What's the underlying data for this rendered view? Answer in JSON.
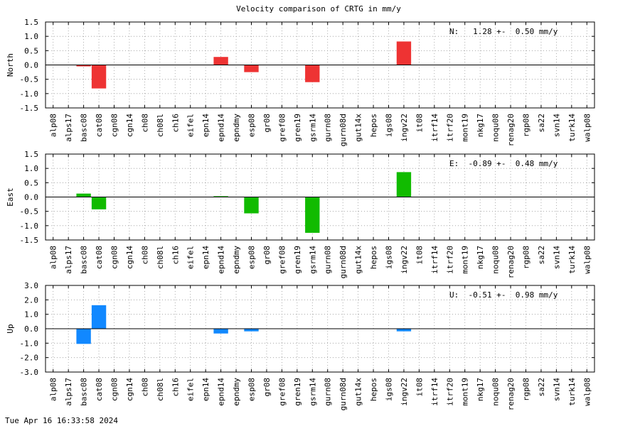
{
  "title": "Velocity comparison of CRTG in mm/y",
  "footer": "Tue Apr 16 16:33:58 2024",
  "chart_data": [
    {
      "type": "bar",
      "ylabel": "North",
      "ylim": [
        -1.5,
        1.5
      ],
      "yticks": [
        -1.5,
        -1.0,
        -0.5,
        0.0,
        0.5,
        1.0,
        1.5
      ],
      "color": "#ee3333",
      "annotation": "N:   1.28 +-  0.50 mm/y",
      "grid": true,
      "categories": [
        "alp08",
        "alps17",
        "basc08",
        "cat08",
        "cgn08",
        "cgn14",
        "ch08",
        "ch08l",
        "ch16",
        "eifel",
        "epn14",
        "epnd14",
        "epndmy",
        "esp08",
        "gr08",
        "gref08",
        "gren19",
        "gsrm14",
        "gurn08",
        "gurn08d",
        "gut14x",
        "hepos",
        "igs08",
        "ingv22",
        "it08",
        "itrf14",
        "itrf20",
        "mont19",
        "nkg17",
        "noqu08",
        "renag20",
        "rgp08",
        "sa22",
        "svn14",
        "turk14",
        "walp08"
      ],
      "values": [
        0,
        0,
        -0.05,
        -0.82,
        0,
        0,
        0,
        0,
        0,
        0,
        0,
        0.28,
        0,
        -0.25,
        0,
        0,
        0,
        -0.6,
        0,
        0,
        0,
        0,
        0,
        0.82,
        0,
        0,
        0,
        0,
        0,
        0,
        0,
        0,
        0,
        0,
        0,
        0
      ]
    },
    {
      "type": "bar",
      "ylabel": "East",
      "ylim": [
        -1.5,
        1.5
      ],
      "yticks": [
        -1.5,
        -1.0,
        -0.5,
        0.0,
        0.5,
        1.0,
        1.5
      ],
      "color": "#11bb00",
      "annotation": "E:  -0.89 +-  0.48 mm/y",
      "grid": true,
      "categories": [
        "alp08",
        "alps17",
        "basc08",
        "cat08",
        "cgn08",
        "cgn14",
        "ch08",
        "ch08l",
        "ch16",
        "eifel",
        "epn14",
        "epnd14",
        "epndmy",
        "esp08",
        "gr08",
        "gref08",
        "gren19",
        "gsrm14",
        "gurn08",
        "gurn08d",
        "gut14x",
        "hepos",
        "igs08",
        "ingv22",
        "it08",
        "itrf14",
        "itrf20",
        "mont19",
        "nkg17",
        "noqu08",
        "renag20",
        "rgp08",
        "sa22",
        "svn14",
        "turk14",
        "walp08"
      ],
      "values": [
        0,
        0,
        0.12,
        -0.43,
        0,
        0,
        0,
        0,
        0,
        0,
        0,
        0.03,
        0,
        -0.57,
        0,
        0,
        0,
        -1.25,
        0,
        0,
        0,
        0,
        0,
        0.87,
        0,
        0,
        0,
        0,
        0,
        0,
        0,
        0,
        0,
        0,
        0,
        0
      ]
    },
    {
      "type": "bar",
      "ylabel": "Up",
      "ylim": [
        -3.0,
        3.0
      ],
      "yticks": [
        -3.0,
        -2.0,
        -1.0,
        0.0,
        1.0,
        2.0,
        3.0
      ],
      "color": "#1188ff",
      "annotation": "U:  -0.51 +-  0.98 mm/y",
      "grid": true,
      "categories": [
        "alp08",
        "alps17",
        "basc08",
        "cat08",
        "cgn08",
        "cgn14",
        "ch08",
        "ch08l",
        "ch16",
        "eifel",
        "epn14",
        "epnd14",
        "epndmy",
        "esp08",
        "gr08",
        "gref08",
        "gren19",
        "gsrm14",
        "gurn08",
        "gurn08d",
        "gut14x",
        "hepos",
        "igs08",
        "ingv22",
        "it08",
        "itrf14",
        "itrf20",
        "mont19",
        "nkg17",
        "noqu08",
        "renag20",
        "rgp08",
        "sa22",
        "svn14",
        "turk14",
        "walp08"
      ],
      "values": [
        0,
        0,
        -1.05,
        1.63,
        0,
        0,
        0,
        0,
        0,
        0,
        0,
        -0.33,
        0,
        -0.18,
        0,
        0,
        0,
        0,
        0,
        0,
        0,
        0,
        0,
        -0.18,
        0,
        0,
        0,
        0,
        0,
        0,
        0,
        0,
        0,
        0,
        0,
        0
      ]
    }
  ]
}
